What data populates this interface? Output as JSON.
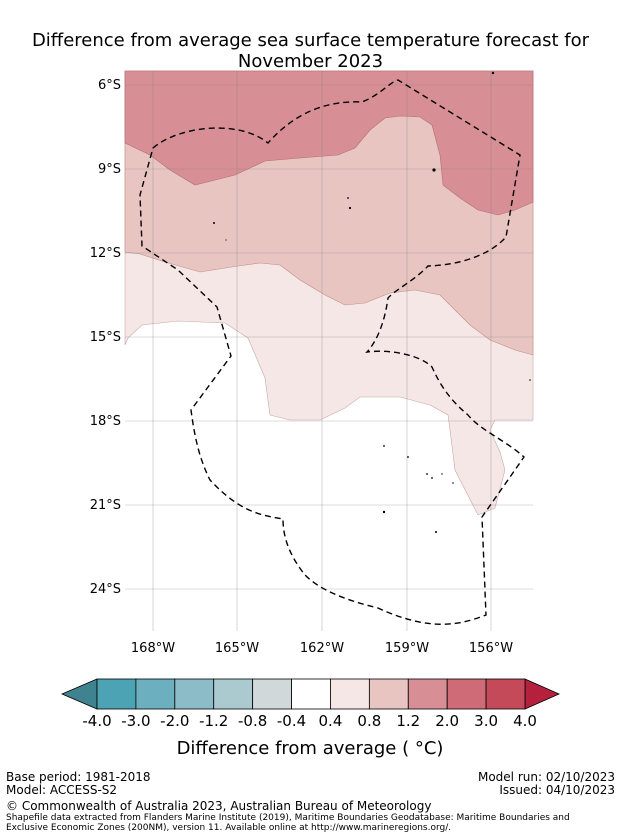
{
  "title_line1": "Difference from average sea surface temperature forecast for",
  "title_line2": "November 2023",
  "lat_labels": [
    "6°S",
    "9°S",
    "12°S",
    "15°S",
    "18°S",
    "21°S",
    "24°S"
  ],
  "lon_labels": [
    "168°W",
    "165°W",
    "162°W",
    "159°W",
    "156°W"
  ],
  "colorbar": {
    "ticks": [
      "-4.0",
      "-3.0",
      "-2.0",
      "-1.2",
      "-0.8",
      "-0.4",
      "0.4",
      "0.8",
      "1.2",
      "2.0",
      "3.0",
      "4.0"
    ],
    "colors": [
      "#4ba3b3",
      "#6cb0bf",
      "#8bbcc7",
      "#abcad0",
      "#d0d8da",
      "#ffffff",
      "#f5e7e5",
      "#e8c5c1",
      "#d78e95",
      "#ce6b76",
      "#c44a5a"
    ],
    "under_color": "#3e838f",
    "over_color": "#b5213d",
    "label": "Difference from average ( °C)"
  },
  "footer": {
    "base_period": "Base period: 1981-2018",
    "model": "Model: ACCESS-S2",
    "model_run": "Model run: 02/10/2023",
    "issued": "Issued: 04/10/2023",
    "copyright": "© Commonwealth of Australia 2023, Australian Bureau of Meteorology",
    "shapefile_1": "Shapefile data extracted from Flanders Marine Institute (2019), Maritime Boundaries Geodatabase: Maritime Boundaries and",
    "shapefile_2": "Exclusive Economic Zones (200NM), version 11. Available online at http://www.marineregions.org/."
  }
}
